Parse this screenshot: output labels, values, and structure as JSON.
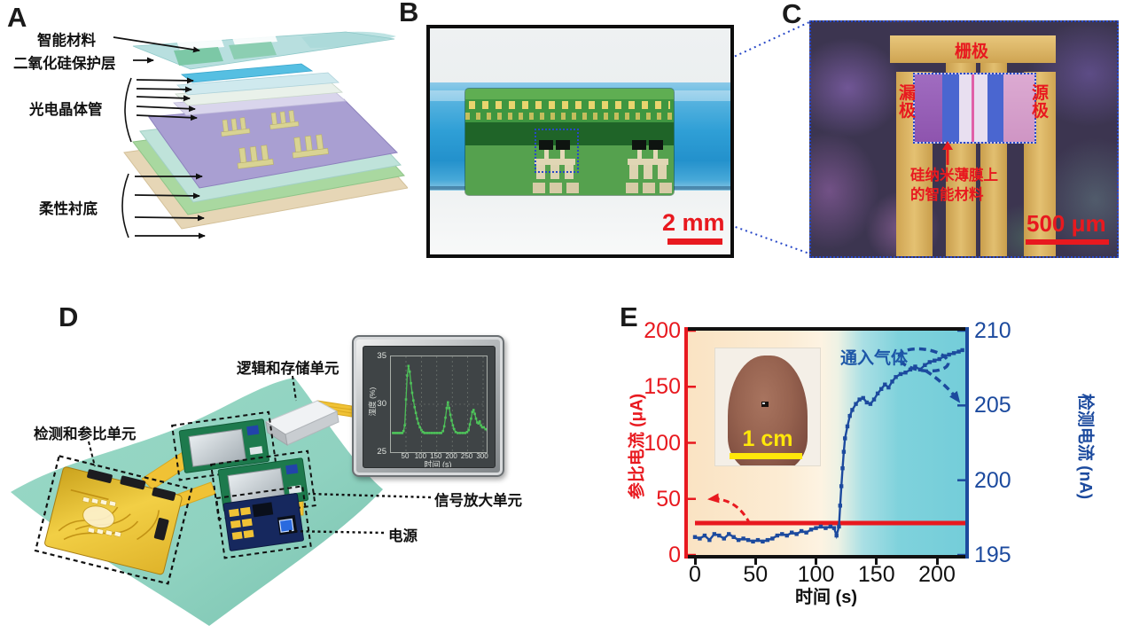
{
  "colors": {
    "accent_red": "#e8191f",
    "accent_blue": "#1c4a9e",
    "trace_green": "#4ec45a",
    "sheet_teal": "#8fd2c0",
    "gold_electrode": "#d9b763",
    "bg_orange": "#fae5c8",
    "bg_cyan": "#79cfda"
  },
  "panels": {
    "a": {
      "letter": "A",
      "labels": {
        "smart_material": "智能材料",
        "sio2_layer": "二氧化硅保护层",
        "phototransistor": "光电晶体管",
        "flexible_substrate": "柔性衬底"
      }
    },
    "b": {
      "letter": "B",
      "scale_bar": "2 mm"
    },
    "c": {
      "letter": "C",
      "labels": {
        "gate": "栅极",
        "drain": "漏极",
        "source": "源极",
        "note_line1": "硅纳米薄膜上",
        "note_line2": "的智能材料"
      },
      "scale_bar": "500 μm"
    },
    "d": {
      "letter": "D",
      "labels": {
        "logic_storage": "逻辑和存储单元",
        "detect_reference": "检测和参比单元",
        "signal_amplifier": "信号放大单元",
        "power": "电源"
      }
    },
    "e": {
      "letter": "E",
      "inset_scale_bar": "1 cm"
    }
  },
  "chart_data": [
    {
      "type": "scatter",
      "title": "",
      "xlabel": "时间 (s)",
      "ylabel": "湿度 (%)",
      "xlim": [
        1,
        330
      ],
      "ylim": [
        25,
        35
      ],
      "xticks": [
        50,
        100,
        150,
        200,
        250,
        300
      ],
      "yticks": [
        35,
        30,
        25
      ],
      "grid": "dotted",
      "legend_position": "none",
      "series": [
        {
          "name": "湿度",
          "color": "#4ec45a",
          "x": [
            8,
            14,
            20,
            26,
            32,
            38,
            42,
            46,
            50,
            54,
            58,
            62,
            66,
            70,
            74,
            78,
            82,
            86,
            90,
            95,
            100,
            105,
            110,
            118,
            126,
            134,
            142,
            150,
            158,
            164,
            170,
            174,
            178,
            182,
            186,
            190,
            194,
            198,
            202,
            206,
            211,
            218,
            226,
            234,
            242,
            248,
            253,
            257,
            261,
            265,
            269,
            273,
            277,
            281,
            285,
            289,
            293,
            297,
            302,
            308,
            314,
            320
          ],
          "y": [
            27,
            27,
            27,
            27,
            27,
            27,
            27.2,
            27.8,
            30.5,
            33,
            34,
            33.4,
            32.2,
            31.2,
            30.4,
            29.7,
            29.1,
            28.5,
            28.0,
            27.6,
            27.3,
            27.1,
            27,
            27,
            27,
            27,
            27,
            27,
            27,
            27,
            27.2,
            27.7,
            28.6,
            29.6,
            30.2,
            29.6,
            28.9,
            28.3,
            27.8,
            27.4,
            27.1,
            27,
            27,
            27,
            27,
            27.1,
            27.3,
            27.9,
            28.5,
            29.2,
            29.4,
            29.0,
            28.5,
            28.1,
            28.0,
            28.2,
            27.8,
            27.6,
            27.6,
            27.4,
            27.3,
            27.2
          ]
        }
      ]
    },
    {
      "type": "line",
      "title": "",
      "xlabel": "时间 (s)",
      "ylabel_left": "参比电流 (μA)",
      "ylabel_right": "检测电流 (nA)",
      "annotation": "通入气体",
      "xlim": [
        0,
        224
      ],
      "ylim_left": [
        0,
        200
      ],
      "ylim_right": [
        195,
        210
      ],
      "xticks": [
        0,
        50,
        100,
        150,
        200
      ],
      "yticks_left": [
        200,
        150,
        100,
        50,
        0
      ],
      "yticks_right": [
        210,
        205,
        200,
        195
      ],
      "grid": "off",
      "legend_position": "none",
      "series": [
        {
          "name": "参比电流",
          "axis": "left",
          "color": "#e8191f",
          "style": "solid",
          "x": [
            0,
            224
          ],
          "y": [
            28.5,
            28.5
          ]
        },
        {
          "name": "检测电流",
          "axis": "right",
          "color": "#1c4a9e",
          "style": "square-markers",
          "x": [
            0,
            4,
            8,
            12,
            16,
            20,
            24,
            28,
            32,
            36,
            40,
            44,
            48,
            52,
            56,
            60,
            64,
            68,
            72,
            76,
            80,
            84,
            88,
            92,
            96,
            100,
            104,
            108,
            112,
            115,
            117,
            119,
            120,
            121,
            122,
            123,
            124,
            126,
            128,
            130,
            133,
            136,
            139,
            142,
            145,
            148,
            151,
            154,
            157,
            160,
            163,
            166,
            170,
            174,
            178,
            182,
            186,
            190,
            194,
            198,
            202,
            206,
            210,
            214,
            218,
            221
          ],
          "y": [
            196.2,
            196.1,
            196.3,
            196.0,
            196.4,
            196.3,
            196.1,
            196.4,
            196.2,
            196.0,
            196.1,
            196.0,
            195.9,
            196.0,
            195.9,
            196.0,
            196.1,
            196.3,
            196.4,
            196.3,
            196.5,
            196.4,
            196.6,
            196.5,
            196.7,
            196.8,
            196.9,
            196.8,
            196.9,
            196.8,
            196.3,
            196.9,
            198.3,
            199.6,
            200.8,
            201.9,
            202.8,
            203.6,
            204.3,
            204.7,
            205.1,
            205.4,
            205.5,
            205.2,
            205.1,
            205.4,
            205.8,
            206.1,
            206.4,
            206.2,
            206.6,
            206.9,
            207.1,
            207.2,
            207.4,
            207.6,
            207.4,
            207.7,
            207.9,
            208.0,
            208.1,
            208.3,
            208.4,
            208.5,
            208.6,
            208.7
          ]
        }
      ]
    }
  ]
}
